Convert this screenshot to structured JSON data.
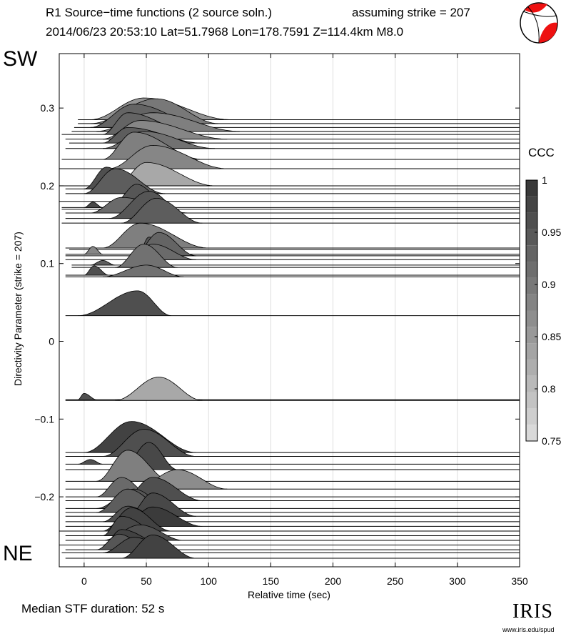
{
  "header": {
    "title_left": "R1 Source−time functions (2 source soln.)",
    "title_right": "assuming strike = 207",
    "subtitle": "2014/06/23 20:53:10  Lat=51.7968 Lon=178.7591  Z=114.4km  M8.0",
    "label_top": "SW",
    "label_bottom": "NE"
  },
  "footer": {
    "median_text": "Median STF duration: 52 s",
    "logo_text": "IRIS",
    "logo_url": "www.iris.edu/spud"
  },
  "colors": {
    "beachball_fill": "#ee1111",
    "grid": "#dddddd"
  },
  "chart_data": {
    "type": "area",
    "xlabel": "Relative time (sec)",
    "ylabel": "Directivity Parameter (strike = 207)",
    "xlim": [
      -20,
      350
    ],
    "ylim": [
      -0.29,
      0.37
    ],
    "xticks": [
      0,
      50,
      100,
      150,
      200,
      250,
      300,
      350
    ],
    "yticks": [
      -0.2,
      -0.1,
      0,
      0.1,
      0.2,
      0.3
    ],
    "ytick_labels": [
      "−0.2",
      "−0.1",
      "0",
      "0.1",
      "0.2",
      "0.3"
    ],
    "grid": "vertical",
    "colorbar": {
      "label": "CCC",
      "range": [
        0.75,
        1
      ],
      "ticks": [
        0.75,
        0.8,
        0.85,
        0.9,
        0.95,
        1
      ],
      "tick_labels": [
        "0.75",
        "0.8",
        "0.85",
        "0.9",
        "0.95",
        "1"
      ]
    },
    "traces": [
      {
        "y": 0.285,
        "start": -5,
        "ccc": 0.86,
        "pulses": [
          {
            "t0": 5,
            "t1": 118,
            "peak": 48,
            "amp": 0.028
          }
        ]
      },
      {
        "y": 0.28,
        "start": -5,
        "ccc": 0.9,
        "pulses": [
          {
            "t0": 5,
            "t1": 108,
            "peak": 58,
            "amp": 0.032
          }
        ]
      },
      {
        "y": 0.275,
        "start": -8,
        "ccc": 0.93,
        "pulses": [
          {
            "t0": 5,
            "t1": 100,
            "peak": 40,
            "amp": 0.03
          }
        ]
      },
      {
        "y": 0.27,
        "start": -10,
        "ccc": 0.89,
        "pulses": [
          {
            "t0": 10,
            "t1": 125,
            "peak": 55,
            "amp": 0.024
          }
        ]
      },
      {
        "y": 0.266,
        "start": -18,
        "ccc": 0.93,
        "pulses": [
          {
            "t0": 15,
            "t1": 90,
            "peak": 35,
            "amp": 0.028
          }
        ]
      },
      {
        "y": 0.26,
        "start": -15,
        "ccc": 0.88,
        "pulses": [
          {
            "t0": 15,
            "t1": 115,
            "peak": 45,
            "amp": 0.024
          }
        ]
      },
      {
        "y": 0.255,
        "start": -12,
        "ccc": 0.94,
        "pulses": [
          {
            "t0": 15,
            "t1": 95,
            "peak": 35,
            "amp": 0.02
          }
        ]
      },
      {
        "y": 0.248,
        "start": -15,
        "ccc": 0.91,
        "pulses": [
          {
            "t0": 15,
            "t1": 105,
            "peak": 48,
            "amp": 0.022
          }
        ]
      },
      {
        "y": 0.234,
        "start": -18,
        "ccc": 0.89,
        "pulses": [
          {
            "t0": 15,
            "t1": 95,
            "peak": 40,
            "amp": 0.035
          }
        ]
      },
      {
        "y": 0.222,
        "start": -20,
        "ccc": 0.88,
        "pulses": [
          {
            "t0": 20,
            "t1": 115,
            "peak": 55,
            "amp": 0.03
          }
        ]
      },
      {
        "y": 0.2,
        "start": -20,
        "ccc": 0.83,
        "pulses": [
          {
            "t0": 25,
            "t1": 105,
            "peak": 50,
            "amp": 0.03
          }
        ]
      },
      {
        "y": 0.196,
        "start": -15,
        "ccc": 0.96,
        "pulses": [
          {
            "t0": 0,
            "t1": 45,
            "peak": 18,
            "amp": 0.028
          }
        ]
      },
      {
        "y": 0.19,
        "start": -15,
        "ccc": 0.94,
        "pulses": [
          {
            "t0": 0,
            "t1": 65,
            "peak": 25,
            "amp": 0.032
          }
        ]
      },
      {
        "y": 0.18,
        "start": -20,
        "ccc": 0.95,
        "pulses": [
          {
            "t0": 25,
            "t1": 65,
            "peak": 42,
            "amp": 0.022
          }
        ]
      },
      {
        "y": 0.172,
        "start": -18,
        "ccc": 0.97,
        "pulses": [
          {
            "t0": 0,
            "t1": 15,
            "peak": 7,
            "amp": 0.007
          }
        ]
      },
      {
        "y": 0.17,
        "start": -18,
        "ccc": 0.93,
        "pulses": [
          {
            "t0": 15,
            "t1": 55,
            "peak": 30,
            "amp": 0.015
          }
        ]
      },
      {
        "y": 0.165,
        "start": -15,
        "ccc": 0.92,
        "pulses": [
          {
            "t0": 5,
            "t1": 85,
            "peak": 30,
            "amp": 0.02
          }
        ]
      },
      {
        "y": 0.158,
        "start": -15,
        "ccc": 0.95,
        "pulses": [
          {
            "t0": 20,
            "t1": 85,
            "peak": 52,
            "amp": 0.035
          }
        ]
      },
      {
        "y": 0.152,
        "start": -18,
        "ccc": 0.94,
        "pulses": [
          {
            "t0": 30,
            "t1": 95,
            "peak": 58,
            "amp": 0.032
          }
        ]
      },
      {
        "y": 0.12,
        "start": -15,
        "ccc": 0.89,
        "pulses": [
          {
            "t0": 15,
            "t1": 100,
            "peak": 45,
            "amp": 0.032
          }
        ]
      },
      {
        "y": 0.118,
        "start": -12,
        "ccc": 0.95,
        "pulses": [
          {
            "t0": 45,
            "t1": 70,
            "peak": 52,
            "amp": 0.016
          }
        ]
      },
      {
        "y": 0.112,
        "start": -15,
        "ccc": 0.88,
        "pulses": [
          {
            "t0": 0,
            "t1": 15,
            "peak": 7,
            "amp": 0.01
          }
        ]
      },
      {
        "y": 0.11,
        "start": -15,
        "ccc": 0.93,
        "pulses": [
          {
            "t0": 40,
            "t1": 90,
            "peak": 60,
            "amp": 0.03
          }
        ]
      },
      {
        "y": 0.105,
        "start": -15,
        "ccc": 0.92,
        "pulses": [
          {
            "t0": 35,
            "t1": 90,
            "peak": 55,
            "amp": 0.02
          }
        ]
      },
      {
        "y": 0.098,
        "start": -10,
        "ccc": 0.94,
        "pulses": [
          {
            "t0": 5,
            "t1": 25,
            "peak": 15,
            "amp": 0.006
          }
        ]
      },
      {
        "y": 0.095,
        "start": -10,
        "ccc": 0.91,
        "pulses": [
          {
            "t0": 25,
            "t1": 75,
            "peak": 48,
            "amp": 0.03
          }
        ]
      },
      {
        "y": 0.085,
        "start": -15,
        "ccc": 0.96,
        "pulses": [
          {
            "t0": 0,
            "t1": 20,
            "peak": 8,
            "amp": 0.012
          }
        ]
      },
      {
        "y": 0.083,
        "start": -15,
        "ccc": 0.91,
        "pulses": [
          {
            "t0": 15,
            "t1": 80,
            "peak": 50,
            "amp": 0.015
          }
        ]
      },
      {
        "y": 0.033,
        "start": -15,
        "ccc": 0.96,
        "pulses": [
          {
            "t0": -5,
            "t1": 70,
            "peak": 43,
            "amp": 0.032
          }
        ]
      },
      {
        "y": -0.075,
        "start": -15,
        "ccc": 0.96,
        "pulses": [
          {
            "t0": -5,
            "t1": 10,
            "peak": 0,
            "amp": 0.008
          }
        ]
      },
      {
        "y": -0.076,
        "start": -15,
        "ccc": 0.83,
        "pulses": [
          {
            "t0": 25,
            "t1": 95,
            "peak": 60,
            "amp": 0.03
          }
        ]
      },
      {
        "y": -0.143,
        "start": -15,
        "ccc": 0.98,
        "pulses": [
          {
            "t0": 0,
            "t1": 90,
            "peak": 38,
            "amp": 0.04
          }
        ]
      },
      {
        "y": -0.148,
        "start": -15,
        "ccc": 0.96,
        "pulses": [
          {
            "t0": 15,
            "t1": 90,
            "peak": 48,
            "amp": 0.035
          }
        ]
      },
      {
        "y": -0.158,
        "start": -15,
        "ccc": 0.96,
        "pulses": [
          {
            "t0": -5,
            "t1": 15,
            "peak": 5,
            "amp": 0.006
          }
        ]
      },
      {
        "y": -0.165,
        "start": -15,
        "ccc": 0.97,
        "pulses": [
          {
            "t0": 30,
            "t1": 75,
            "peak": 52,
            "amp": 0.035
          }
        ]
      },
      {
        "y": -0.18,
        "start": -15,
        "ccc": 0.89,
        "pulses": [
          {
            "t0": 10,
            "t1": 70,
            "peak": 35,
            "amp": 0.04
          }
        ]
      },
      {
        "y": -0.19,
        "start": -15,
        "ccc": 0.87,
        "pulses": [
          {
            "t0": 40,
            "t1": 115,
            "peak": 75,
            "amp": 0.025
          }
        ]
      },
      {
        "y": -0.2,
        "start": -15,
        "ccc": 0.92,
        "pulses": [
          {
            "t0": 10,
            "t1": 55,
            "peak": 30,
            "amp": 0.025
          }
        ]
      },
      {
        "y": -0.205,
        "start": -15,
        "ccc": 0.96,
        "pulses": [
          {
            "t0": 30,
            "t1": 95,
            "peak": 55,
            "amp": 0.03
          }
        ]
      },
      {
        "y": -0.215,
        "start": -15,
        "ccc": 0.95,
        "pulses": [
          {
            "t0": 10,
            "t1": 70,
            "peak": 40,
            "amp": 0.025
          }
        ]
      },
      {
        "y": -0.22,
        "start": -15,
        "ccc": 0.94,
        "pulses": [
          {
            "t0": 10,
            "t1": 70,
            "peak": 35,
            "amp": 0.03
          }
        ]
      },
      {
        "y": -0.225,
        "start": -15,
        "ccc": 0.97,
        "pulses": [
          {
            "t0": 35,
            "t1": 90,
            "peak": 55,
            "amp": 0.03
          }
        ]
      },
      {
        "y": -0.232,
        "start": -15,
        "ccc": 0.96,
        "pulses": [
          {
            "t0": 15,
            "t1": 65,
            "peak": 35,
            "amp": 0.02
          }
        ]
      },
      {
        "y": -0.238,
        "start": -15,
        "ccc": 0.99,
        "pulses": [
          {
            "t0": 30,
            "t1": 95,
            "peak": 55,
            "amp": 0.025
          }
        ]
      },
      {
        "y": -0.244,
        "start": -20,
        "ccc": 0.98,
        "pulses": [
          {
            "t0": 15,
            "t1": 70,
            "peak": 38,
            "amp": 0.03
          }
        ]
      },
      {
        "y": -0.25,
        "start": -15,
        "ccc": 0.97,
        "pulses": [
          {
            "t0": 15,
            "t1": 65,
            "peak": 30,
            "amp": 0.025
          }
        ]
      },
      {
        "y": -0.256,
        "start": -15,
        "ccc": 0.96,
        "pulses": [
          {
            "t0": 15,
            "t1": 80,
            "peak": 45,
            "amp": 0.02
          }
        ]
      },
      {
        "y": -0.262,
        "start": -20,
        "ccc": 0.98,
        "pulses": [
          {
            "t0": 15,
            "t1": 65,
            "peak": 30,
            "amp": 0.02
          }
        ]
      },
      {
        "y": -0.268,
        "start": -15,
        "ccc": 0.95,
        "pulses": [
          {
            "t0": 10,
            "t1": 55,
            "peak": 28,
            "amp": 0.02
          }
        ]
      },
      {
        "y": -0.272,
        "start": -18,
        "ccc": 0.97,
        "pulses": [
          {
            "t0": 15,
            "t1": 75,
            "peak": 40,
            "amp": 0.02
          }
        ]
      },
      {
        "y": -0.279,
        "start": -15,
        "ccc": 0.98,
        "pulses": [
          {
            "t0": 30,
            "t1": 90,
            "peak": 55,
            "amp": 0.03
          }
        ]
      }
    ]
  }
}
